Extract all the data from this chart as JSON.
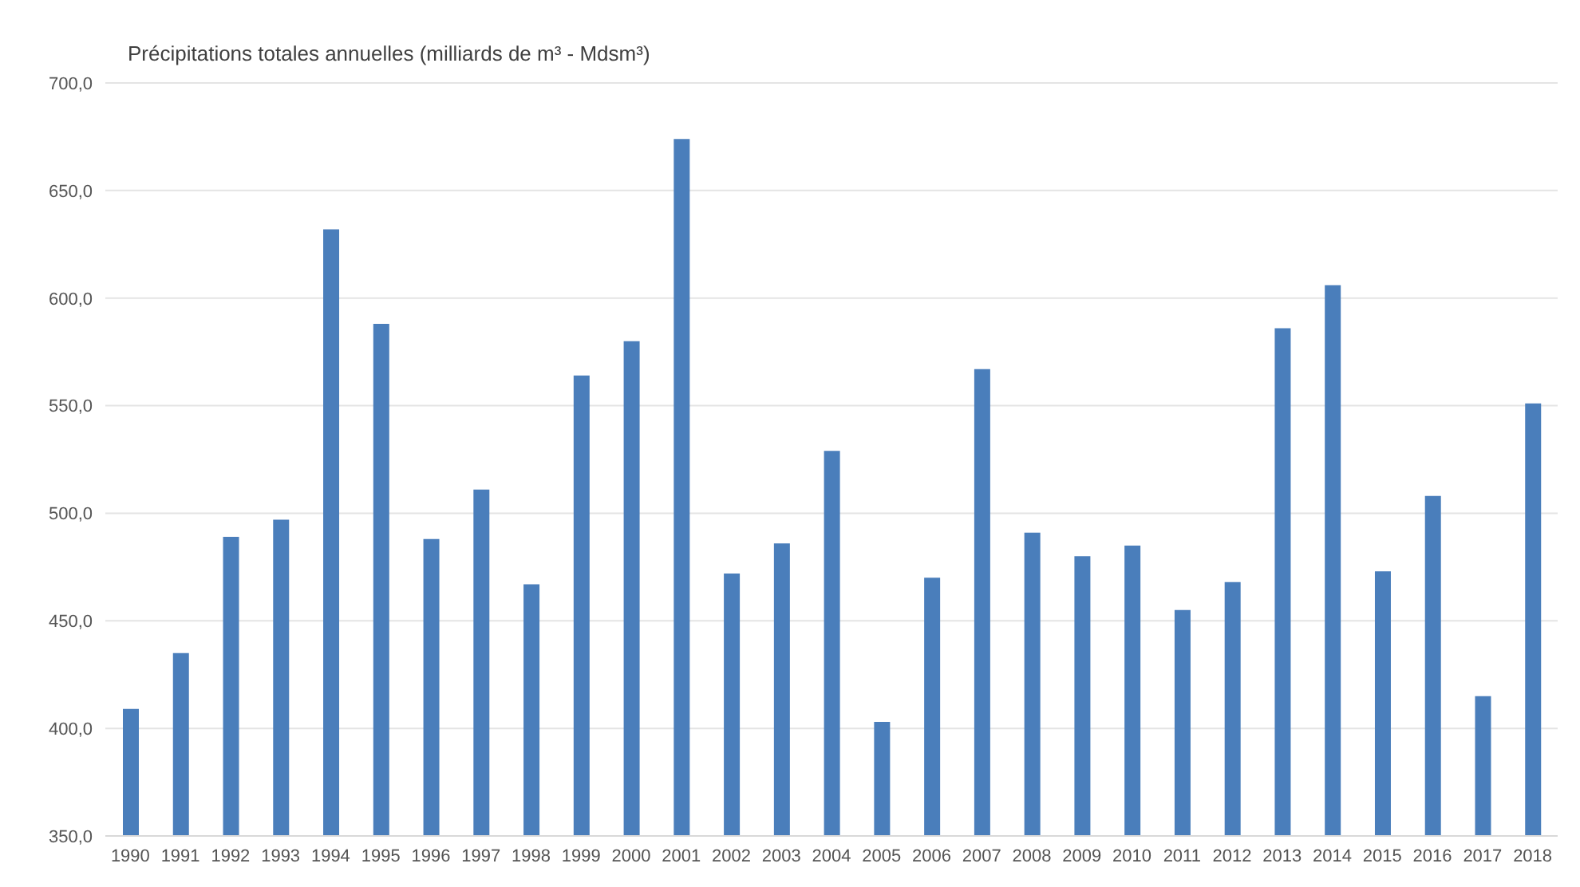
{
  "chart_data": {
    "type": "bar",
    "title": "Précipitations totales annuelles (milliards de m³ - Mdsm³)",
    "categories": [
      "1990",
      "1991",
      "1992",
      "1993",
      "1994",
      "1995",
      "1996",
      "1997",
      "1998",
      "1999",
      "2000",
      "2001",
      "2002",
      "2003",
      "2004",
      "2005",
      "2006",
      "2007",
      "2008",
      "2009",
      "2010",
      "2011",
      "2012",
      "2013",
      "2014",
      "2015",
      "2016",
      "2017",
      "2018"
    ],
    "values": [
      409,
      435,
      489,
      497,
      632,
      588,
      488,
      511,
      467,
      564,
      580,
      674,
      472,
      486,
      529,
      403,
      470,
      567,
      491,
      480,
      485,
      455,
      468,
      586,
      606,
      473,
      508,
      415,
      551
    ],
    "color": "#4a7ebb",
    "ylim": [
      350,
      700
    ],
    "yticks": [
      {
        "value": 350,
        "label": "350,0"
      },
      {
        "value": 400,
        "label": "400,0"
      },
      {
        "value": 450,
        "label": "450,0"
      },
      {
        "value": 500,
        "label": "500,0"
      },
      {
        "value": 550,
        "label": "550,0"
      },
      {
        "value": 600,
        "label": "600,0"
      },
      {
        "value": 650,
        "label": "650,0"
      },
      {
        "value": 700,
        "label": "700,0"
      }
    ],
    "grid": "y"
  }
}
